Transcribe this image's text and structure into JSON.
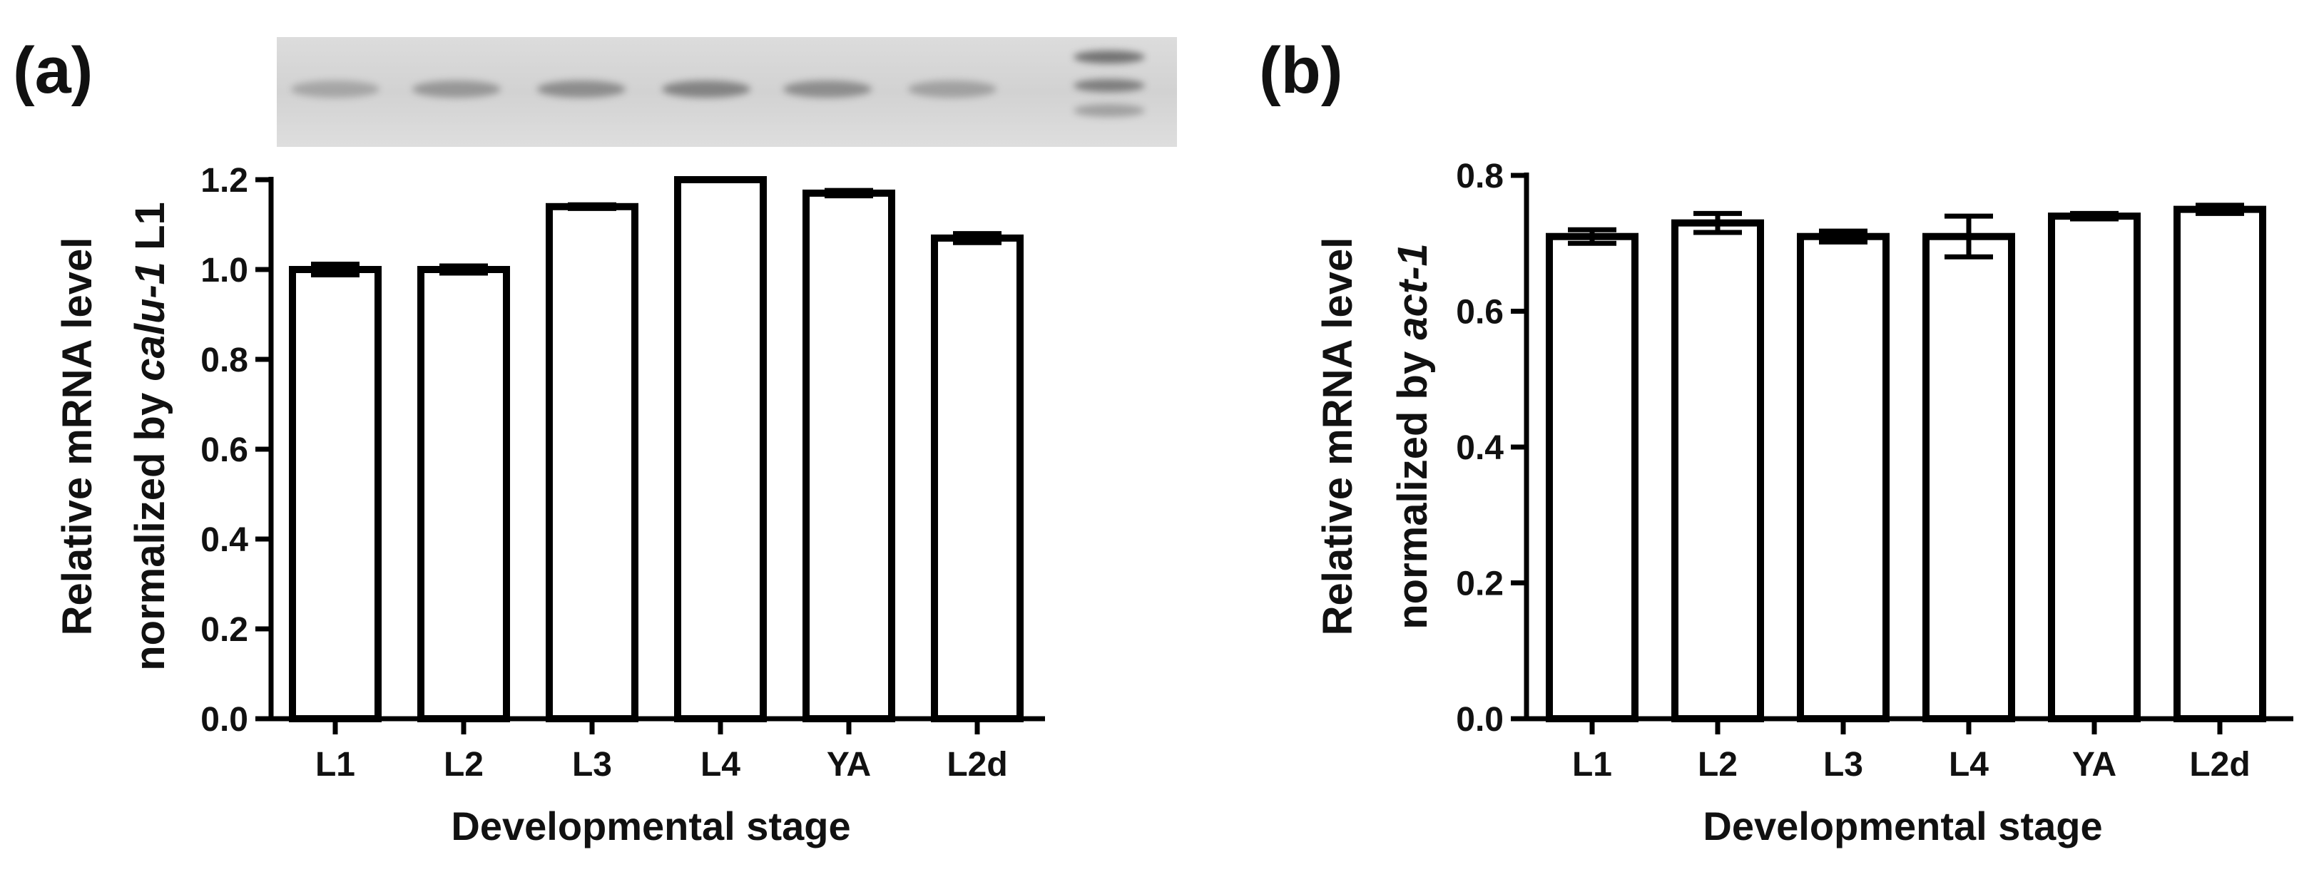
{
  "panels": [
    {
      "label": "(a)",
      "chart_data": {
        "type": "bar",
        "categories": [
          "L1",
          "L2",
          "L3",
          "L4",
          "YA",
          "L2d"
        ],
        "values": [
          1.0,
          1.0,
          1.14,
          1.2,
          1.17,
          1.07
        ],
        "errors": [
          0.012,
          0.008,
          0.004,
          0.0,
          0.006,
          0.01
        ],
        "ylim": [
          0,
          1.2
        ],
        "yticks": [
          "0.0",
          "0.2",
          "0.4",
          "0.6",
          "0.8",
          "1.0",
          "1.2"
        ],
        "xlabel": "Developmental stage",
        "ylabel_line1": "Relative mRNA level",
        "ylabel_line2_prefix": "normalized by ",
        "ylabel_line2_italic": "calu-1",
        "ylabel_line2_suffix": " L1",
        "gel_image": {
          "lanes": 6,
          "has_ladder": true
        }
      }
    },
    {
      "label": "(b)",
      "chart_data": {
        "type": "bar",
        "categories": [
          "L1",
          "L2",
          "L3",
          "L4",
          "YA",
          "L2d"
        ],
        "values": [
          0.71,
          0.73,
          0.71,
          0.71,
          0.74,
          0.75
        ],
        "errors": [
          0.01,
          0.014,
          0.008,
          0.03,
          0.004,
          0.006
        ],
        "ylim": [
          0,
          0.8
        ],
        "yticks": [
          "0.0",
          "0.2",
          "0.4",
          "0.6",
          "0.8"
        ],
        "xlabel": "Developmental stage",
        "ylabel_line1": "Relative mRNA level",
        "ylabel_line2_prefix": "normalized by ",
        "ylabel_line2_italic": "act-1",
        "ylabel_line2_suffix": ""
      }
    }
  ],
  "colors": {
    "bar_fill": "#ffffff",
    "bar_stroke": "#000000",
    "gel_background": "#d8d8d8",
    "gel_band": "#8a8a8a"
  }
}
